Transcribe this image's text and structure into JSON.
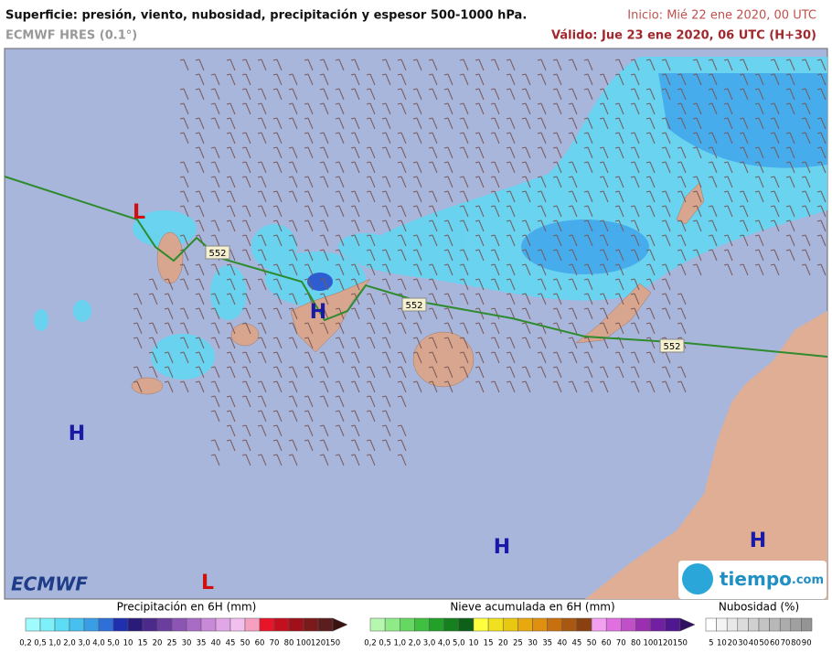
{
  "header": {
    "title": "Superficie: presión, viento, nubosidad, precipitación y espesor 500-1000 hPa.",
    "model": "ECMWF HRES (0.1°)",
    "init": "Inicio: Mié 22 ene 2020, 00 UTC",
    "valid": "Válido: Jue 23 ene 2020, 06 UTC (H+30)"
  },
  "map": {
    "pressure_centers": [
      "L",
      "H",
      "H",
      "L",
      "H",
      "H"
    ],
    "thickness_labels": [
      "552",
      "552",
      "552"
    ],
    "logos": {
      "ecmwf": "ECMWF",
      "tiempo": "tiempo",
      "tiempo_suffix": ".com"
    }
  },
  "legends": [
    {
      "title": "Precipitación en 6H (mm)",
      "labels": [
        "0,2",
        "0,5",
        "1,0",
        "2,0",
        "3,0",
        "4,0",
        "5,0",
        "10",
        "15",
        "20",
        "25",
        "30",
        "35",
        "40",
        "45",
        "50",
        "60",
        "70",
        "80",
        "100",
        "120",
        "150"
      ],
      "colors": [
        "#a0fbff",
        "#7ef0fa",
        "#5cdcf5",
        "#46c0ee",
        "#3a9ee6",
        "#2f6fd8",
        "#1e2fb0",
        "#2a1a7a",
        "#4b2a8c",
        "#6a3d9e",
        "#8c55b4",
        "#a86cc6",
        "#c88ad8",
        "#e0a6e6",
        "#f2c0ee",
        "#f6a0c0",
        "#e8142a",
        "#c4101e",
        "#a0101a",
        "#7a1a1a",
        "#5a1e1e",
        "#3a1212"
      ]
    },
    {
      "title": "Nieve acumulada en 6H (mm)",
      "labels": [
        "0,2",
        "0,5",
        "1,0",
        "2,0",
        "3,0",
        "4,0",
        "5,0",
        "10",
        "15",
        "20",
        "25",
        "30",
        "35",
        "40",
        "45",
        "50",
        "60",
        "70",
        "80",
        "100",
        "120",
        "150"
      ],
      "colors": [
        "#b6f7b0",
        "#8eeb88",
        "#66d862",
        "#40c040",
        "#22a02a",
        "#168020",
        "#0e6018",
        "#ffff40",
        "#f0e020",
        "#e8c810",
        "#e8a810",
        "#e09010",
        "#c87010",
        "#a85810",
        "#8a4010",
        "#f4a0f0",
        "#e070e0",
        "#c050c8",
        "#9a30b0",
        "#7020a0",
        "#501890",
        "#301060"
      ]
    },
    {
      "title": "Nubosidad (%)",
      "labels": [
        "5",
        "10",
        "20",
        "30",
        "40",
        "50",
        "60",
        "70",
        "80",
        "90"
      ],
      "colors": [
        "#ffffff",
        "#f4f4f4",
        "#e8e8e8",
        "#dcdcdc",
        "#d0d0d0",
        "#c4c4c4",
        "#b8b8b8",
        "#acacac",
        "#a0a0a0",
        "#949494"
      ]
    }
  ]
}
